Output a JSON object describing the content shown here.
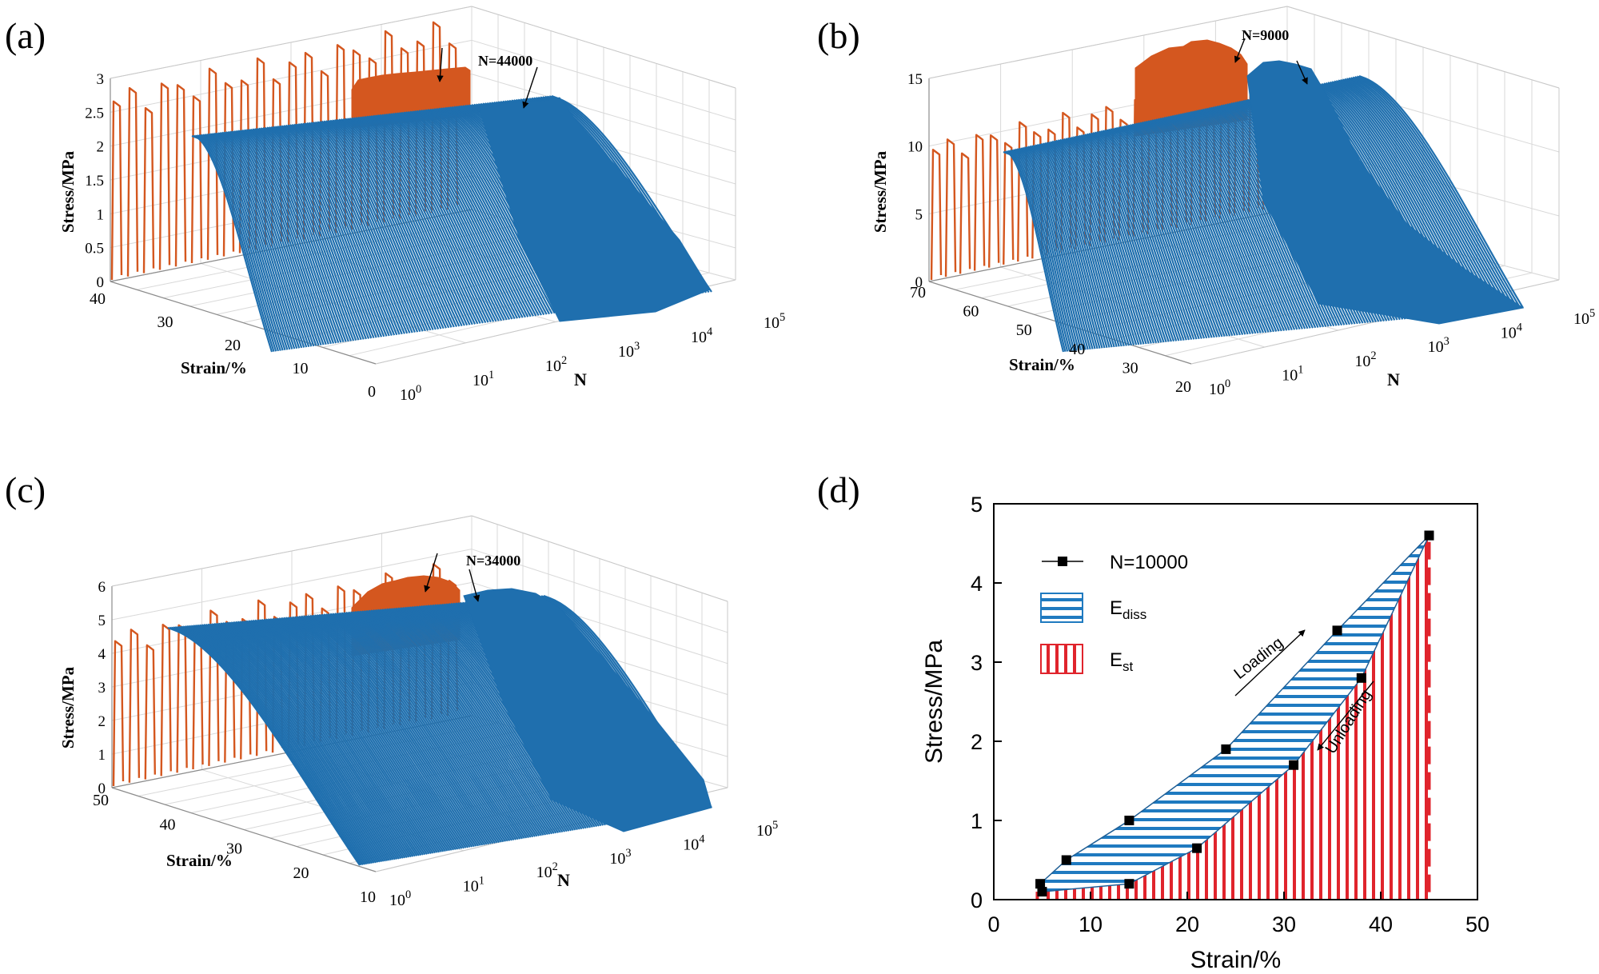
{
  "figure": {
    "panels_3d": [
      {
        "id": "a",
        "label": "(a)",
        "annotation": "N=44000",
        "zlabel": "Stress/MPa",
        "ylabel": "Strain/%",
        "xlabel": "N",
        "zticks": [
          "0",
          "0.5",
          "1",
          "1.5",
          "2",
          "2.5",
          "3"
        ],
        "yticks": [
          "40",
          "30",
          "20",
          "10",
          "0"
        ],
        "xticks": [
          {
            "b": "10",
            "e": "0"
          },
          {
            "b": "10",
            "e": "1"
          },
          {
            "b": "10",
            "e": "2"
          },
          {
            "b": "10",
            "e": "3"
          },
          {
            "b": "10",
            "e": "4"
          },
          {
            "b": "10",
            "e": "5"
          }
        ]
      },
      {
        "id": "b",
        "label": "(b)",
        "annotation": "N=9000",
        "zlabel": "Stress/MPa",
        "ylabel": "Strain/%",
        "xlabel": "N",
        "zticks": [
          "0",
          "5",
          "10",
          "15"
        ],
        "yticks": [
          "70",
          "60",
          "50",
          "40",
          "30",
          "20"
        ],
        "xticks": [
          {
            "b": "10",
            "e": "0"
          },
          {
            "b": "10",
            "e": "1"
          },
          {
            "b": "10",
            "e": "2"
          },
          {
            "b": "10",
            "e": "3"
          },
          {
            "b": "10",
            "e": "4"
          },
          {
            "b": "10",
            "e": "5"
          }
        ]
      },
      {
        "id": "c",
        "label": "(c)",
        "annotation": "N=34000",
        "zlabel": "Stress/MPa",
        "ylabel": "Strain/%",
        "xlabel": "N",
        "zticks": [
          "0",
          "1",
          "2",
          "3",
          "4",
          "5",
          "6"
        ],
        "yticks": [
          "50",
          "40",
          "30",
          "20",
          "10"
        ],
        "xticks": [
          {
            "b": "10",
            "e": "0"
          },
          {
            "b": "10",
            "e": "1"
          },
          {
            "b": "10",
            "e": "2"
          },
          {
            "b": "10",
            "e": "3"
          },
          {
            "b": "10",
            "e": "4"
          },
          {
            "b": "10",
            "e": "5"
          }
        ]
      }
    ],
    "colors": {
      "cycle_blue": "#1f6fae",
      "cycle_orange": "#d4571f",
      "ediss_blue": "#1f7ac0",
      "est_red": "#e0242c",
      "grid": "#d9d9d9",
      "axis": "#000000"
    }
  },
  "chart_data": [
    {
      "type": "line",
      "panel": "a",
      "title": "",
      "xlabel": "N",
      "ylabel": "Strain/%",
      "zlabel": "Stress/MPa",
      "xscale": "log",
      "xlim": [
        1,
        100000
      ],
      "ylim": [
        0,
        40
      ],
      "zlim": [
        0,
        3
      ],
      "peak_stress": 2.7,
      "annotation": "N=44000"
    },
    {
      "type": "line",
      "panel": "b",
      "title": "",
      "xlabel": "N",
      "ylabel": "Strain/%",
      "zlabel": "Stress/MPa",
      "xscale": "log",
      "xlim": [
        1,
        100000
      ],
      "ylim": [
        20,
        70
      ],
      "zlim": [
        0,
        15
      ],
      "peak_stress": 17,
      "annotation": "N=9000"
    },
    {
      "type": "line",
      "panel": "c",
      "title": "",
      "xlabel": "N",
      "ylabel": "Strain/%",
      "zlabel": "Stress/MPa",
      "xscale": "log",
      "xlim": [
        1,
        100000
      ],
      "ylim": [
        10,
        50
      ],
      "zlim": [
        0,
        6
      ],
      "peak_stress": 5.9,
      "annotation": "N=34000"
    },
    {
      "type": "line",
      "panel": "d",
      "label": "(d)",
      "title": "",
      "xlabel": "Strain/%",
      "ylabel": "Stress/MPa",
      "xlim": [
        0,
        50
      ],
      "ylim": [
        0,
        5
      ],
      "xticks": [
        "0",
        "10",
        "20",
        "30",
        "40",
        "50"
      ],
      "yticks": [
        "0",
        "1",
        "2",
        "3",
        "4",
        "5"
      ],
      "series": [
        {
          "name": "N=10000",
          "loading": [
            [
              4.8,
              0.2
            ],
            [
              7.5,
              0.5
            ],
            [
              14,
              1.0
            ],
            [
              24,
              1.9
            ],
            [
              35.5,
              3.4
            ],
            [
              45,
              4.6
            ]
          ],
          "unloading": [
            [
              45,
              4.6
            ],
            [
              38,
              2.8
            ],
            [
              31,
              1.7
            ],
            [
              21,
              0.65
            ],
            [
              14,
              0.2
            ],
            [
              5,
              0.1
            ]
          ]
        }
      ],
      "legend": {
        "line_label": "N=10000",
        "ediss_base": "E",
        "ediss_sub": "diss",
        "est_base": "E",
        "est_sub": "st"
      },
      "annotations": {
        "loading": "Loading",
        "unloading": "Unloading"
      }
    }
  ]
}
